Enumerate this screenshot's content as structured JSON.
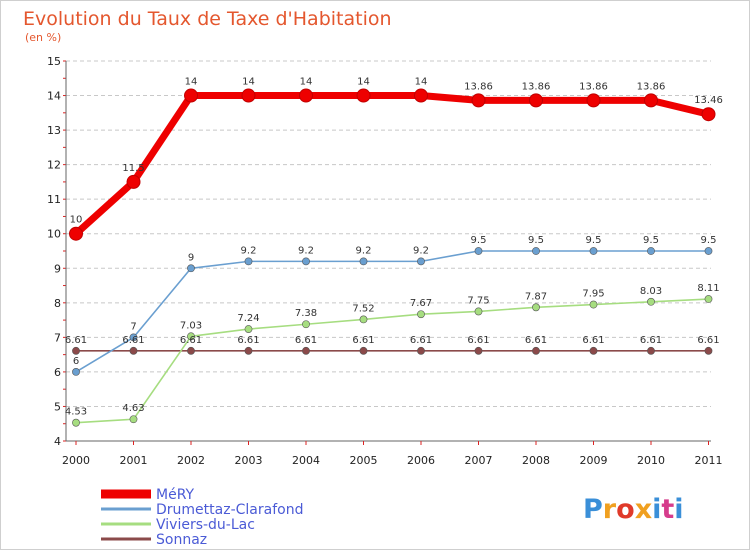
{
  "chart_data": {
    "type": "line",
    "title": "Evolution du Taux de Taxe d'Habitation",
    "subtitle": "(en %)",
    "x": [
      "2000",
      "2001",
      "2002",
      "2003",
      "2004",
      "2005",
      "2006",
      "2007",
      "2008",
      "2009",
      "2010",
      "2011"
    ],
    "ylim": [
      4,
      15
    ],
    "yticks": [
      4,
      5,
      6,
      7,
      8,
      9,
      10,
      11,
      12,
      13,
      14,
      15
    ],
    "grid": "horizontal",
    "legend_position": "bottom-left",
    "series": [
      {
        "name": "MéRY",
        "color": "#ee0000",
        "values": [
          10,
          11.5,
          14,
          14,
          14,
          14,
          14,
          13.86,
          13.86,
          13.86,
          13.86,
          13.46
        ],
        "labels": [
          "10",
          "11.5",
          "14",
          "14",
          "14",
          "14",
          "14",
          "13.86",
          "13.86",
          "13.86",
          "13.86",
          "13.46"
        ]
      },
      {
        "name": "Drumettaz-Clarafond",
        "color": "#6a9fd0",
        "values": [
          6,
          7,
          9,
          9.2,
          9.2,
          9.2,
          9.2,
          9.5,
          9.5,
          9.5,
          9.5,
          9.5
        ],
        "labels": [
          "6",
          "7",
          "9",
          "9.2",
          "9.2",
          "9.2",
          "9.2",
          "9.5",
          "9.5",
          "9.5",
          "9.5",
          "9.5"
        ]
      },
      {
        "name": "Viviers-du-Lac",
        "color": "#a6dd80",
        "values": [
          4.53,
          4.63,
          7.03,
          7.24,
          7.38,
          7.52,
          7.67,
          7.75,
          7.87,
          7.95,
          8.03,
          8.11
        ],
        "labels": [
          "4.53",
          "4.63",
          "7.03",
          "7.24",
          "7.38",
          "7.52",
          "7.67",
          "7.75",
          "7.87",
          "7.95",
          "8.03",
          "8.11"
        ]
      },
      {
        "name": "Sonnaz",
        "color": "#8b4a4a",
        "values": [
          6.61,
          6.61,
          6.61,
          6.61,
          6.61,
          6.61,
          6.61,
          6.61,
          6.61,
          6.61,
          6.61,
          6.61
        ],
        "labels": [
          "6.61",
          "6.61",
          "6.61",
          "6.61",
          "6.61",
          "6.61",
          "6.61",
          "6.61",
          "6.61",
          "6.61",
          "6.61",
          "6.61"
        ]
      }
    ]
  },
  "logo": {
    "text": "Proxiti",
    "colors": [
      "#3a8fd8",
      "#f0a020",
      "#e03a2a",
      "#f0a020",
      "#3a8fd8",
      "#d63c8c",
      "#3a8fd8"
    ]
  }
}
